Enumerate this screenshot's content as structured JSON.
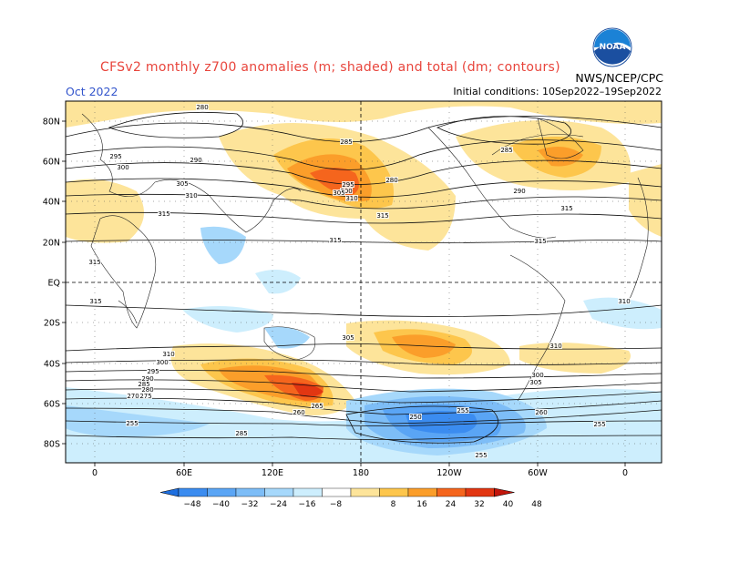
{
  "header": {
    "title": "CFSv2 monthly z700 anomalies (m; shaded) and total (dm; contours)",
    "month": "Oct 2022",
    "agency": "NWS/NCEP/CPC",
    "initial_conditions": "Initial conditions: 10Sep2022–19Sep2022",
    "logo_text": "NOAA"
  },
  "map": {
    "lat_labels": [
      "80N",
      "60N",
      "40N",
      "20N",
      "EQ",
      "20S",
      "40S",
      "60S",
      "80S"
    ],
    "lon_labels": [
      "0",
      "60E",
      "120E",
      "180",
      "120W",
      "60W",
      "0"
    ],
    "contour_labels": [
      "280",
      "285",
      "290",
      "295",
      "300",
      "305",
      "310",
      "315",
      "315",
      "315",
      "315",
      "315",
      "315",
      "310",
      "310",
      "305",
      "300",
      "295",
      "290",
      "285",
      "280",
      "275",
      "270",
      "265",
      "260",
      "255",
      "250",
      "255",
      "255",
      "260",
      "285",
      "285",
      "295",
      "300",
      "305",
      "310",
      "280",
      "290",
      "300",
      "305",
      "310",
      "315",
      "255"
    ]
  },
  "colors": {
    "neg48": "#1e6fe0",
    "neg40": "#3b8cf0",
    "neg32": "#5aa5f5",
    "neg24": "#7dbdf7",
    "neg16": "#a6d8fb",
    "neg8": "#cdeefd",
    "pos8": "#fde49a",
    "pos16": "#fdc64c",
    "pos24": "#fb9e2a",
    "pos32": "#f5651d",
    "pos40": "#e23612",
    "pos48": "#c2160c",
    "title_color": "#e8453c",
    "month_color": "#3355cc"
  },
  "colorbar": {
    "ticks": [
      "−48",
      "−40",
      "−32",
      "−24",
      "−16",
      "−8",
      "8",
      "16",
      "24",
      "32",
      "40",
      "48"
    ]
  }
}
